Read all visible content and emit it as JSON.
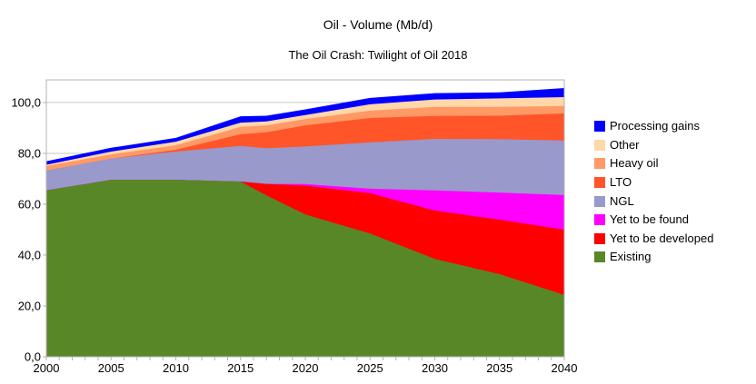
{
  "title": "Oil - Volume (Mb/d)",
  "subtitle": "The Oil Crash: Twilight of Oil 2018",
  "legend": {
    "position": "right",
    "items": [
      {
        "label": "Processing gains",
        "color": "#0000FF"
      },
      {
        "label": "Other",
        "color": "#FFD7A8"
      },
      {
        "label": "Heavy oil",
        "color": "#FF9966"
      },
      {
        "label": "LTO",
        "color": "#FF5528"
      },
      {
        "label": "NGL",
        "color": "#9999CC"
      },
      {
        "label": "Yet to be found",
        "color": "#FF00FF"
      },
      {
        "label": "Yet to be developed",
        "color": "#FF0000"
      },
      {
        "label": "Existing",
        "color": "#588728"
      }
    ]
  },
  "axes": {
    "y_tick_labels": [
      "0,0",
      "20,0",
      "40,0",
      "60,0",
      "80,0",
      "100,0"
    ],
    "x_tick_labels": [
      "2000",
      "2005",
      "2010",
      "2015",
      "2020",
      "2025",
      "2030",
      "2035",
      "2040"
    ]
  },
  "chart_data": {
    "type": "area",
    "stacked": true,
    "title": "Oil - Volume (Mb/d)",
    "subtitle": "The Oil Crash: Twilight of Oil 2018",
    "xlabel": "",
    "ylabel": "",
    "xlim": [
      2000,
      2040
    ],
    "ylim": [
      0,
      108.9
    ],
    "x_minor_tick_step": 1,
    "x_major_ticks": [
      2000,
      2005,
      2010,
      2015,
      2020,
      2025,
      2030,
      2035,
      2040
    ],
    "y_ticks": {
      "values": [
        0,
        20,
        40,
        60,
        80,
        100
      ],
      "labels": [
        "0,0",
        "20,0",
        "40,0",
        "60,0",
        "80,0",
        "100,0"
      ]
    },
    "grid": true,
    "legend_position": "right",
    "x": [
      2000,
      2005,
      2010,
      2015,
      2017,
      2020,
      2025,
      2030,
      2035,
      2040
    ],
    "series": [
      {
        "name": "Existing",
        "color": "#588728",
        "values": [
          65.4,
          69.6,
          69.6,
          68.9,
          63.5,
          56.0,
          48.5,
          38.5,
          32.5,
          24.3
        ]
      },
      {
        "name": "Yet to be developed",
        "color": "#FF0000",
        "values": [
          0,
          0,
          0,
          0,
          4.5,
          11.3,
          15.8,
          19.0,
          21.4,
          25.7
        ]
      },
      {
        "name": "Yet to be found",
        "color": "#FF00FF",
        "values": [
          0,
          0,
          0,
          0,
          0,
          0.6,
          1.8,
          7.9,
          10.7,
          13.6
        ]
      },
      {
        "name": "NGL",
        "color": "#9999CC",
        "values": [
          7.8,
          8.3,
          11.1,
          14.0,
          14.0,
          14.8,
          18.2,
          20.3,
          21.0,
          21.4
        ]
      },
      {
        "name": "LTO",
        "color": "#FF5528",
        "values": [
          0,
          0,
          0.7,
          4.6,
          6.3,
          8.3,
          9.6,
          9.0,
          9.2,
          10.7
        ]
      },
      {
        "name": "Heavy oil",
        "color": "#FF9966",
        "values": [
          1.8,
          1.7,
          1.8,
          2.9,
          2.7,
          2.5,
          2.9,
          3.6,
          3.5,
          2.9
        ]
      },
      {
        "name": "Other",
        "color": "#FFD7A8",
        "values": [
          0.5,
          1.1,
          1.4,
          1.7,
          1.6,
          1.6,
          2.5,
          2.9,
          3.3,
          3.5
        ]
      },
      {
        "name": "Processing gains",
        "color": "#0000FF",
        "values": [
          1.4,
          1.5,
          1.5,
          2.5,
          2.2,
          2.2,
          2.5,
          2.5,
          2.4,
          3.6
        ]
      }
    ],
    "totals_by_x": [
      76.9,
      82.2,
      86.1,
      94.6,
      94.8,
      97.3,
      101.8,
      103.7,
      104.0,
      105.7
    ],
    "frame_color": "#B3B3B3",
    "gridline_color": "#C6C6C6",
    "tick_color": "#B3B3B3"
  }
}
